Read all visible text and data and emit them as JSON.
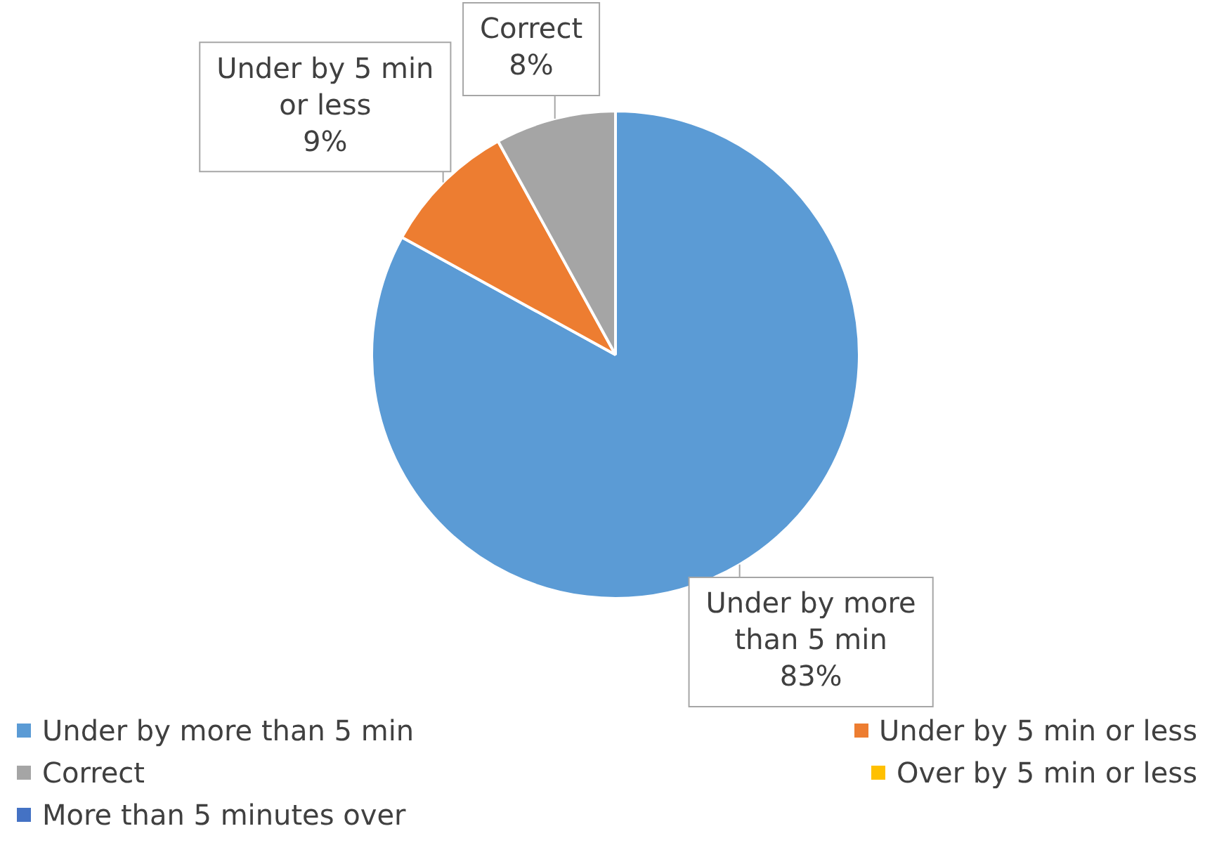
{
  "chart_data": {
    "type": "pie",
    "categories": [
      "Under by more than 5 min",
      "Under by 5 min or less",
      "Correct",
      "Over by 5 min or less",
      "More than 5 minutes over"
    ],
    "values": [
      83,
      9,
      8,
      0,
      0
    ],
    "colors": [
      "#5b9bd5",
      "#ed7d31",
      "#a5a5a5",
      "#ffc000",
      "#4472c4"
    ],
    "value_labels": [
      "83%",
      "9%",
      "8%",
      null,
      null
    ],
    "legend": "bottom"
  }
}
